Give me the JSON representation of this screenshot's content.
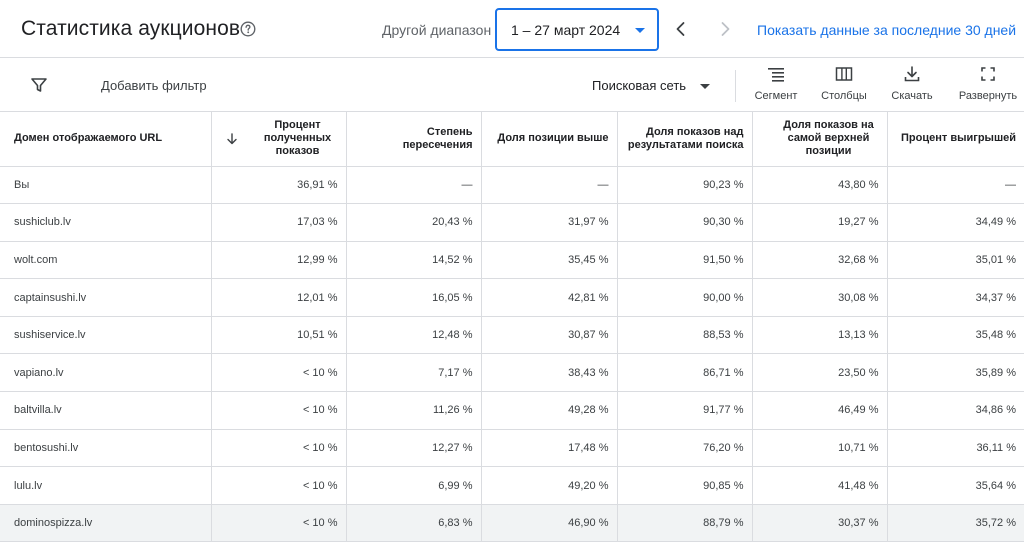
{
  "header": {
    "title": "Статистика аукционов",
    "range_label": "Другой диапазон",
    "date_range": "1 – 27 март 2024",
    "last30_link": "Показать данные за последние 30 дней"
  },
  "toolbar": {
    "add_filter": "Добавить фильтр",
    "network": "Поисковая сеть",
    "segment": "Сегмент",
    "columns": "Столбцы",
    "download": "Скачать",
    "expand": "Развернуть"
  },
  "table": {
    "headers": {
      "domain": "Домен отображаемого URL",
      "impr_share": "Процент полученных показов",
      "overlap": "Степень пересечения",
      "position_above": "Доля позиции выше",
      "top_of_page": "Доля показов над результатами поиска",
      "abs_top": "Доля показов на самой верхней позиции",
      "outranking": "Процент выигрышей"
    },
    "rows": [
      {
        "domain": "Вы",
        "impr_share": "36,91 %",
        "overlap": "—",
        "position_above": "—",
        "top_of_page": "90,23 %",
        "abs_top": "43,80 %",
        "outranking": "—"
      },
      {
        "domain": "sushiclub.lv",
        "impr_share": "17,03 %",
        "overlap": "20,43 %",
        "position_above": "31,97 %",
        "top_of_page": "90,30 %",
        "abs_top": "19,27 %",
        "outranking": "34,49 %"
      },
      {
        "domain": "wolt.com",
        "impr_share": "12,99 %",
        "overlap": "14,52 %",
        "position_above": "35,45 %",
        "top_of_page": "91,50 %",
        "abs_top": "32,68 %",
        "outranking": "35,01 %"
      },
      {
        "domain": "captainsushi.lv",
        "impr_share": "12,01 %",
        "overlap": "16,05 %",
        "position_above": "42,81 %",
        "top_of_page": "90,00 %",
        "abs_top": "30,08 %",
        "outranking": "34,37 %"
      },
      {
        "domain": "sushiservice.lv",
        "impr_share": "10,51 %",
        "overlap": "12,48 %",
        "position_above": "30,87 %",
        "top_of_page": "88,53 %",
        "abs_top": "13,13 %",
        "outranking": "35,48 %"
      },
      {
        "domain": "vapiano.lv",
        "impr_share": "< 10 %",
        "overlap": "7,17 %",
        "position_above": "38,43 %",
        "top_of_page": "86,71 %",
        "abs_top": "23,50 %",
        "outranking": "35,89 %"
      },
      {
        "domain": "baltvilla.lv",
        "impr_share": "< 10 %",
        "overlap": "11,26 %",
        "position_above": "49,28 %",
        "top_of_page": "91,77 %",
        "abs_top": "46,49 %",
        "outranking": "34,86 %"
      },
      {
        "domain": "bentosushi.lv",
        "impr_share": "< 10 %",
        "overlap": "12,27 %",
        "position_above": "17,48 %",
        "top_of_page": "76,20 %",
        "abs_top": "10,71 %",
        "outranking": "36,11 %"
      },
      {
        "domain": "lulu.lv",
        "impr_share": "< 10 %",
        "overlap": "6,99 %",
        "position_above": "49,20 %",
        "top_of_page": "90,85 %",
        "abs_top": "41,48 %",
        "outranking": "35,64 %"
      },
      {
        "domain": "dominospizza.lv",
        "impr_share": "< 10 %",
        "overlap": "6,83 %",
        "position_above": "46,90 %",
        "top_of_page": "88,79 %",
        "abs_top": "30,37 %",
        "outranking": "35,72 %"
      }
    ]
  },
  "colors": {
    "accent": "#1a73e8",
    "border": "#dadce0",
    "highlight_row": "#f1f3f4"
  },
  "icons": {
    "help": "help-circle-icon",
    "prev": "chevron-left-icon",
    "next": "chevron-right-icon",
    "filter": "filter-funnel-icon",
    "segment": "segment-lines-icon",
    "columns": "columns-icon",
    "download": "download-icon",
    "expand": "fullscreen-icon",
    "sort": "arrow-down-icon"
  }
}
